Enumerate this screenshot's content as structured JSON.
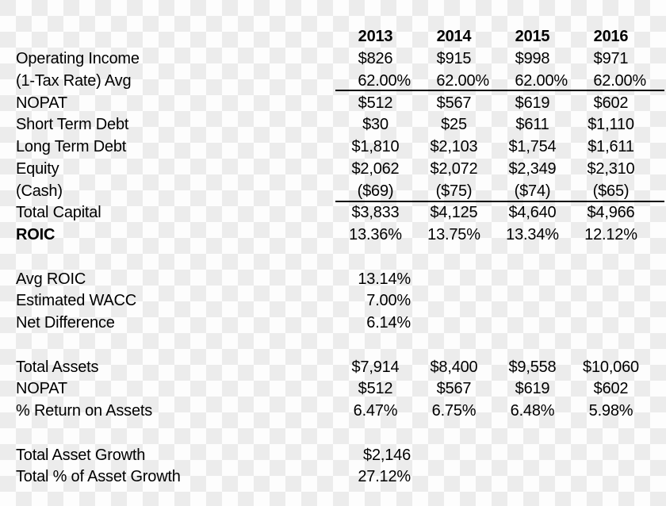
{
  "colors": {
    "checker_light": "#fdfdfd",
    "checker_dark": "#ececec",
    "text": "#000000",
    "rule_line": "#000000"
  },
  "chart_data": {
    "type": "table",
    "columns": [
      "",
      "2013",
      "2014",
      "2015",
      "2016"
    ],
    "layout_hints": {
      "sum_lines_below": [
        "(1-Tax Rate) Avg",
        "(Cash)"
      ],
      "bold_rows": [
        "header",
        "ROIC label"
      ],
      "background": "transparency checkerboard"
    },
    "rows": [
      {
        "label": "",
        "values": [
          "2013",
          "2014",
          "2015",
          "2016"
        ]
      },
      {
        "label": "Operating Income",
        "values": [
          "$826",
          "$915",
          "$998",
          "$971"
        ]
      },
      {
        "label": "(1-Tax Rate) Avg",
        "values": [
          "62.00%",
          "62.00%",
          "62.00%",
          "62.00%"
        ]
      },
      {
        "label": "NOPAT",
        "values": [
          "$512",
          "$567",
          "$619",
          "$602"
        ]
      },
      {
        "label": "Short Term Debt",
        "values": [
          "$30",
          "$25",
          "$611",
          "$1,110"
        ]
      },
      {
        "label": "Long Term Debt",
        "values": [
          "$1,810",
          "$2,103",
          "$1,754",
          "$1,611"
        ]
      },
      {
        "label": "Equity",
        "values": [
          "$2,062",
          "$2,072",
          "$2,349",
          "$2,310"
        ]
      },
      {
        "label": "(Cash)",
        "values": [
          "($69)",
          "($75)",
          "($74)",
          "($65)"
        ]
      },
      {
        "label": "Total Capital",
        "values": [
          "$3,833",
          "$4,125",
          "$4,640",
          "$4,966"
        ]
      },
      {
        "label": "ROIC",
        "values": [
          "13.36%",
          "13.75%",
          "13.34%",
          "12.12%"
        ]
      },
      {
        "label": "Avg ROIC",
        "values": [
          "13.14%"
        ]
      },
      {
        "label": "Estimated WACC",
        "values": [
          "7.00%"
        ]
      },
      {
        "label": "Net Difference",
        "values": [
          "6.14%"
        ]
      },
      {
        "label": "Total Assets",
        "values": [
          "$7,914",
          "$8,400",
          "$9,558",
          "$10,060"
        ]
      },
      {
        "label": "NOPAT",
        "values": [
          "$512",
          "$567",
          "$619",
          "$602"
        ]
      },
      {
        "label": "% Return on Assets",
        "values": [
          "6.47%",
          "6.75%",
          "6.48%",
          "5.98%"
        ]
      },
      {
        "label": "Total Asset Growth",
        "values": [
          "$2,146"
        ]
      },
      {
        "label": "Total % of Asset Growth",
        "values": [
          "27.12%"
        ]
      }
    ]
  }
}
